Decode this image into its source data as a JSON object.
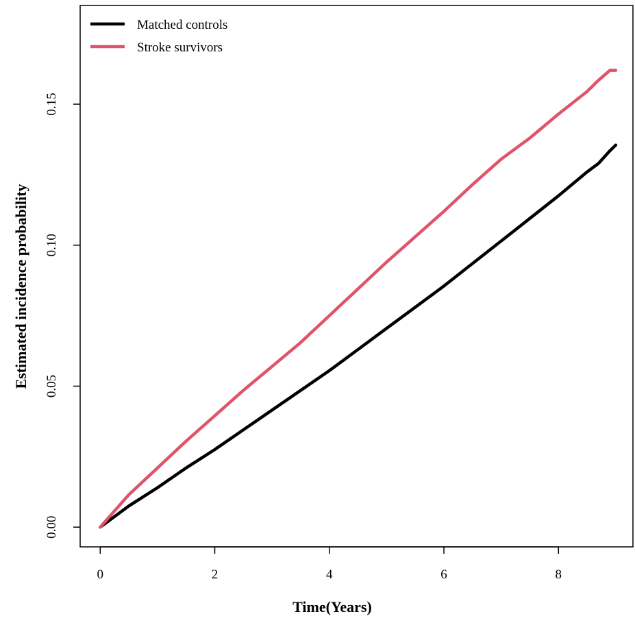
{
  "chart_data": {
    "type": "line",
    "title": "",
    "xlabel": "Time(Years)",
    "ylabel": "Estimated incidence probability",
    "xlim": [
      -0.35,
      9.3
    ],
    "ylim": [
      -0.007,
      0.185
    ],
    "xticks": [
      0,
      2,
      4,
      6,
      8
    ],
    "xtick_labels": [
      "0",
      "2",
      "4",
      "6",
      "8"
    ],
    "yticks": [
      0.0,
      0.05,
      0.1,
      0.15
    ],
    "ytick_labels": [
      "0.00",
      "0.05",
      "0.10",
      "0.15"
    ],
    "grid": false,
    "legend_position": "top-left",
    "series": [
      {
        "name": "Matched controls",
        "color": "#000000",
        "x": [
          0,
          0.5,
          1,
          1.5,
          2,
          2.5,
          3,
          3.5,
          4,
          4.5,
          5,
          5.5,
          6,
          6.5,
          7,
          7.5,
          8,
          8.5,
          8.7,
          8.9,
          9.0
        ],
        "y": [
          0,
          0.0075,
          0.014,
          0.021,
          0.0275,
          0.0345,
          0.0415,
          0.0485,
          0.0555,
          0.063,
          0.0705,
          0.078,
          0.0855,
          0.0935,
          0.1015,
          0.1095,
          0.1175,
          0.126,
          0.129,
          0.1335,
          0.1355
        ]
      },
      {
        "name": "Stroke survivors",
        "color": "#DF536B",
        "x": [
          0,
          0.5,
          1,
          1.5,
          2,
          2.5,
          3,
          3.5,
          4,
          4.5,
          5,
          5.5,
          6,
          6.5,
          7,
          7.5,
          8,
          8.5,
          8.7,
          8.9,
          9.0
        ],
        "y": [
          0,
          0.0115,
          0.021,
          0.0305,
          0.0395,
          0.0485,
          0.057,
          0.0655,
          0.075,
          0.0845,
          0.094,
          0.103,
          0.112,
          0.1215,
          0.1305,
          0.138,
          0.1465,
          0.1545,
          0.1585,
          0.162,
          0.162
        ]
      }
    ]
  }
}
